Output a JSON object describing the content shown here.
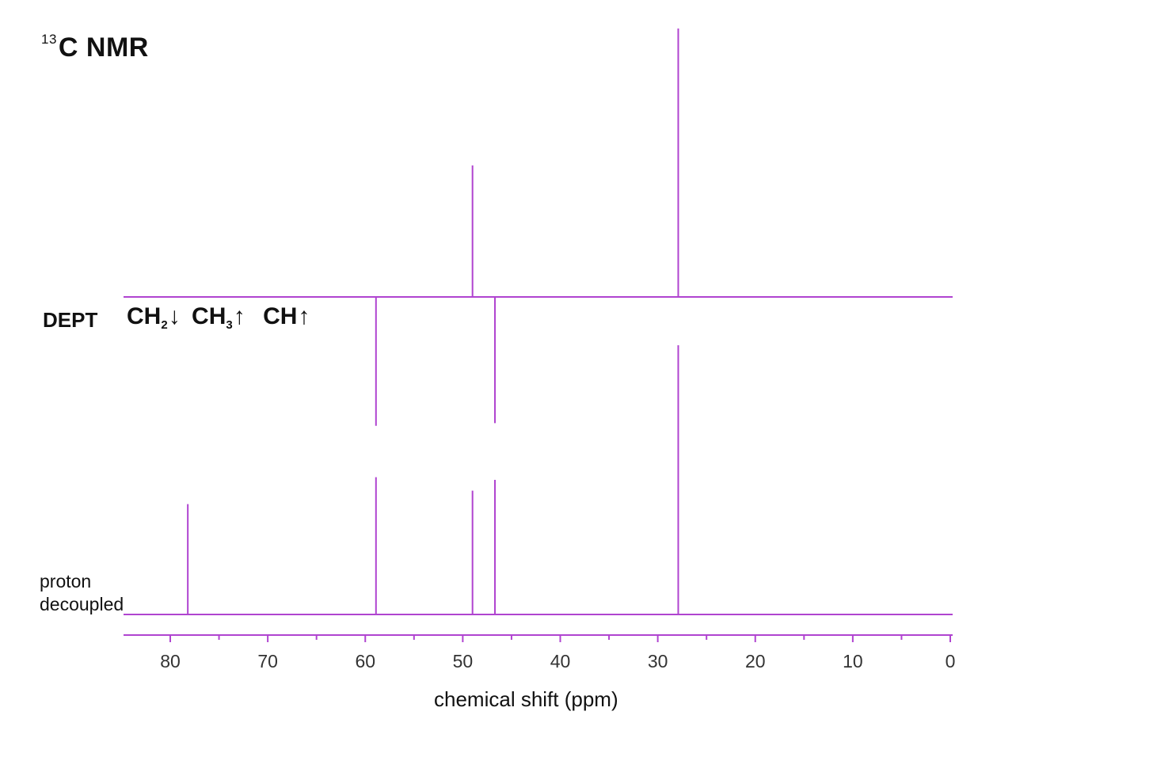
{
  "title": {
    "isotope": "13",
    "nucleus": "C NMR"
  },
  "dept": {
    "label": "DEPT",
    "legend": [
      {
        "group": "CH",
        "subscript": "2",
        "arrow": "↓"
      },
      {
        "group": "CH",
        "subscript": "3",
        "arrow": "↑"
      },
      {
        "group": "CH",
        "subscript": "",
        "arrow": "↑"
      }
    ]
  },
  "proton_decoupled": {
    "line1": "proton",
    "line2": "decoupled"
  },
  "colors": {
    "spectrum": "#b044d0",
    "text": "#111111",
    "axis_text": "#333333"
  },
  "chart_data": {
    "type": "bar",
    "title": "13C NMR",
    "xlabel": "chemical shift (ppm)",
    "ylabel": "",
    "xlim": [
      85,
      0
    ],
    "x_reversed": true,
    "x_ticks": [
      80,
      70,
      60,
      50,
      40,
      30,
      20,
      10,
      0
    ],
    "x_tick_labels": [
      "80",
      "70",
      "60",
      "50",
      "40",
      "30",
      "20",
      "10",
      "0"
    ],
    "grid": false,
    "series": [
      {
        "name": "DEPT",
        "x": [
          58.9,
          49.0,
          46.7,
          27.9
        ],
        "values": [
          -0.48,
          0.49,
          -0.47,
          1.0
        ]
      },
      {
        "name": "proton decoupled",
        "x": [
          78.2,
          58.9,
          49.0,
          46.7,
          27.9
        ],
        "values": [
          0.41,
          0.51,
          0.46,
          0.5,
          1.0
        ]
      }
    ]
  }
}
